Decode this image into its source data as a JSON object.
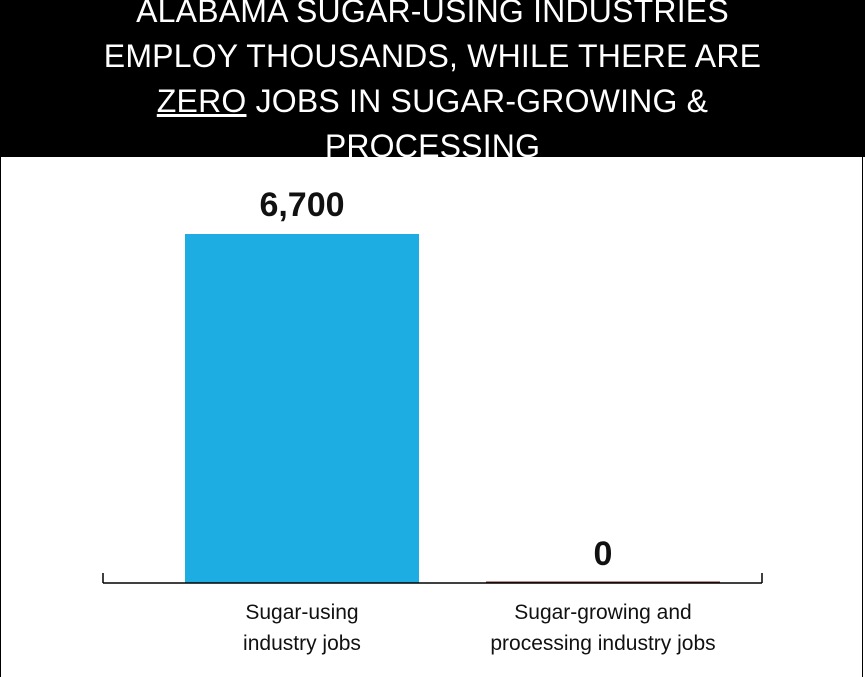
{
  "title": {
    "part1": "ALABAMA SUGAR-USING INDUSTRIES EMPLOY THOUSANDS, WHILE THERE ARE ",
    "emphasis": "ZERO",
    "part2": " JOBS IN SUGAR-GROWING & PROCESSING"
  },
  "chart_data": {
    "type": "bar",
    "categories": [
      "Sugar-using industry jobs",
      "Sugar-growing and processing industry jobs"
    ],
    "category_lines": [
      [
        "Sugar-using",
        "industry jobs"
      ],
      [
        "Sugar-growing and",
        "processing industry jobs"
      ]
    ],
    "values": [
      6700,
      0
    ],
    "data_labels": [
      "6,700",
      "0"
    ],
    "ylim": [
      0,
      6700
    ],
    "xlabel": "",
    "ylabel": "",
    "grid": false,
    "colors": {
      "bar": "#1EADE2",
      "zero_bar": "#7A1F1F",
      "axis": "#000000",
      "title_bg": "#000000",
      "title_text": "#FFFFFF"
    }
  }
}
